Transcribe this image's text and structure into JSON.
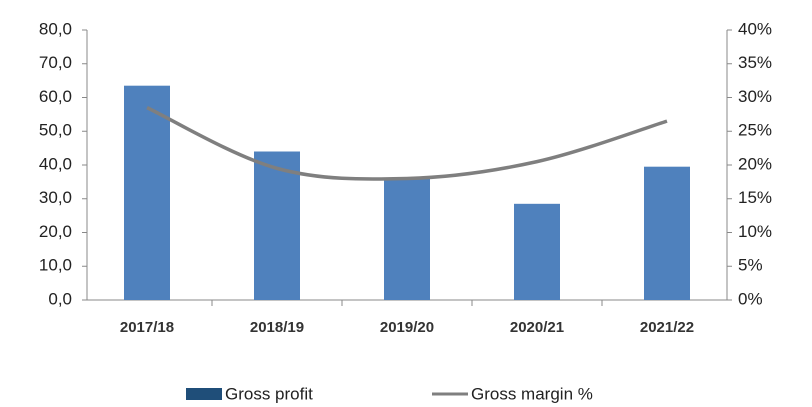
{
  "chart_data": {
    "type": "bar_line",
    "categories": [
      "2017/18",
      "2018/19",
      "2019/20",
      "2020/21",
      "2021/22"
    ],
    "series": [
      {
        "name": "Gross profit",
        "color": "#4f81bd",
        "values": [
          63.5,
          44,
          36,
          28.5,
          39.5
        ]
      },
      {
        "name": "Gross margin %",
        "color": "#7f7f7f",
        "axis": "y2",
        "values": [
          28.5,
          19.5,
          18,
          20.5,
          26.5
        ]
      }
    ],
    "ylim": [
      0,
      80
    ],
    "yticks": [
      {
        "value": 0,
        "label": "0,0"
      },
      {
        "value": 10,
        "label": "10,0"
      },
      {
        "value": 20,
        "label": "20,0"
      },
      {
        "value": 30,
        "label": "30,0"
      },
      {
        "value": 40,
        "label": "40,0"
      },
      {
        "value": 50,
        "label": "50,0"
      },
      {
        "value": 60,
        "label": "60,0"
      },
      {
        "value": 70,
        "label": "70,0"
      },
      {
        "value": 80,
        "label": "80,0"
      }
    ],
    "y2lim": [
      0,
      40
    ],
    "y2ticks": [
      {
        "value": 0,
        "label": "0%"
      },
      {
        "value": 5,
        "label": "5%"
      },
      {
        "value": 10,
        "label": "10%"
      },
      {
        "value": 15,
        "label": "15%"
      },
      {
        "value": 20,
        "label": "20%"
      },
      {
        "value": 25,
        "label": "25%"
      },
      {
        "value": 30,
        "label": "30%"
      },
      {
        "value": 35,
        "label": "35%"
      },
      {
        "value": 40,
        "label": "40%"
      }
    ],
    "legend": "bottom"
  }
}
